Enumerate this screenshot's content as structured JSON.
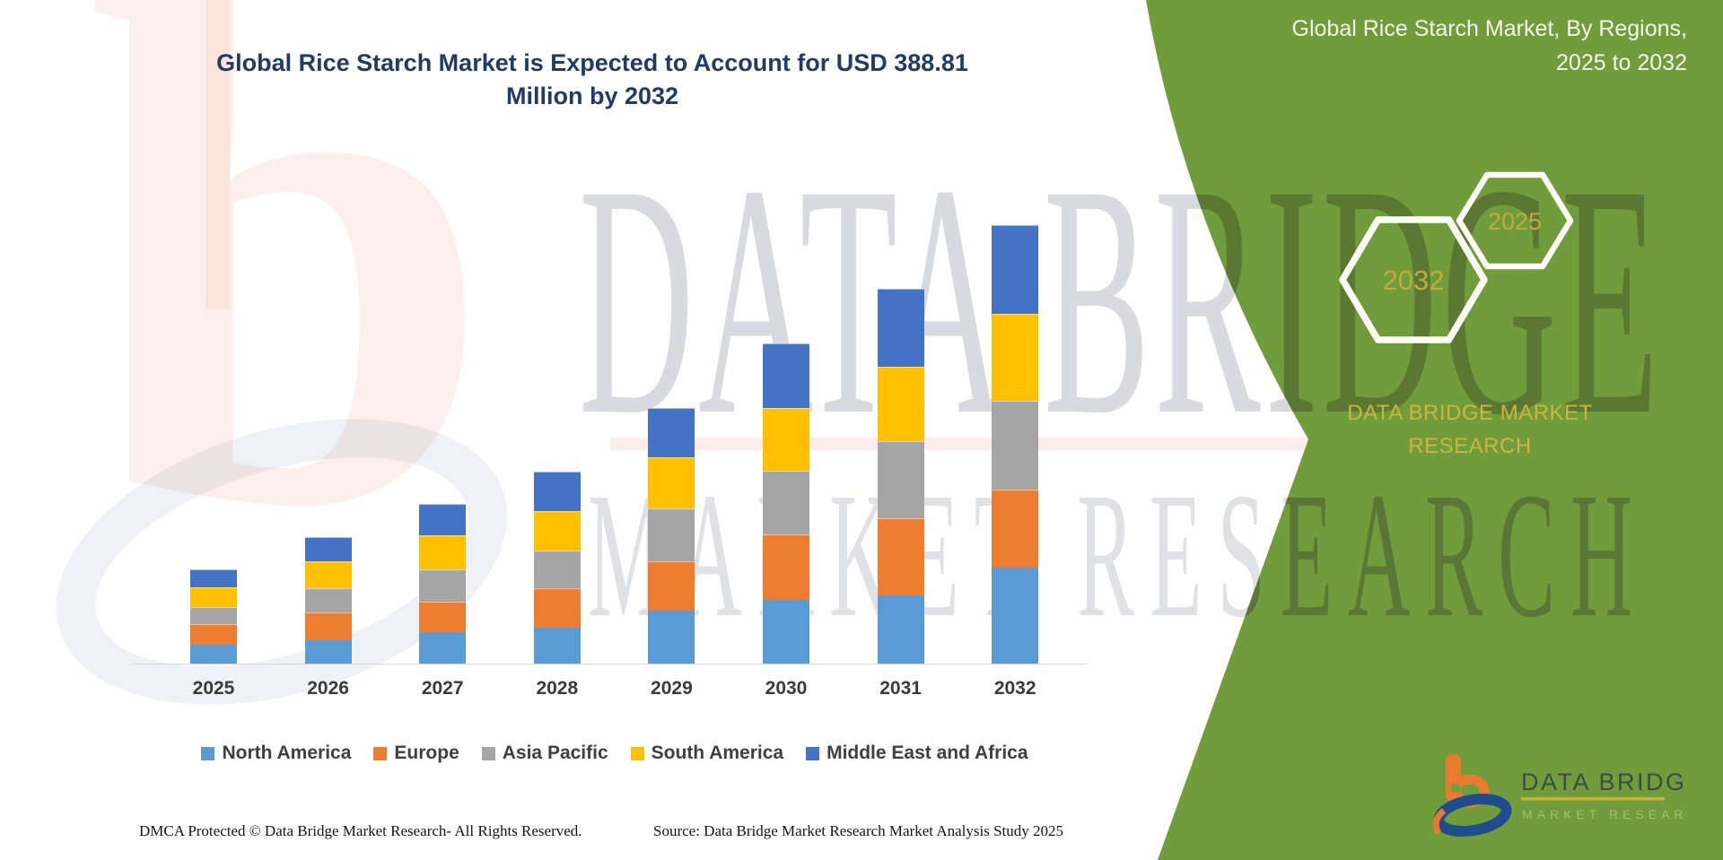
{
  "title": "Global Rice Starch Market is Expected to Account for USD 388.81 Million by 2032",
  "watermark": {
    "line1": "DATA BRIDGE",
    "line2": "MARKET RESEARCH",
    "logo_glyph": "b"
  },
  "panel": {
    "title": "Global Rice Starch Market, By Regions, 2025 to 2032",
    "hexagon_large": "2032",
    "hexagon_small": "2025",
    "brand": "DATA BRIDGE MARKET RESEARCH",
    "logo_title": "DATA BRIDGE",
    "logo_subtitle": "MARKET RESEARCH",
    "colors": {
      "panel_green": "#719C3C",
      "gold_text": "#CDB53E",
      "hexagon_stroke": "#FCFCF7"
    }
  },
  "footer": {
    "left": "DMCA Protected © Data Bridge Market Research-  All Rights Reserved.",
    "right": "Source: Data Bridge Market Research  Market Analysis Study 2025"
  },
  "chart_data": {
    "type": "bar",
    "stacked": true,
    "title": "Global Rice Starch Market is Expected to Account for USD 388.81 Million by 2032",
    "unit": "USD Million",
    "categories": [
      "2025",
      "2026",
      "2027",
      "2028",
      "2029",
      "2030",
      "2031",
      "2032"
    ],
    "series": [
      {
        "name": "North America",
        "color": "#5B9BD5",
        "values": [
          17.2,
          21.2,
          28.3,
          32.3,
          47.7,
          57.0,
          61.0,
          86.1
        ]
      },
      {
        "name": "Europe",
        "color": "#ED7D31",
        "values": [
          18.6,
          24.6,
          27.3,
          35.3,
          43.7,
          58.3,
          68.0,
          68.9
        ]
      },
      {
        "name": "Asia Pacific",
        "color": "#A5A5A5",
        "values": [
          14.3,
          21.7,
          27.8,
          33.1,
          46.3,
          55.6,
          68.3,
          78.1
        ]
      },
      {
        "name": "South America",
        "color": "#FFC000",
        "values": [
          17.5,
          23.3,
          30.4,
          35.0,
          45.0,
          55.6,
          66.2,
          76.8
        ]
      },
      {
        "name": "Middle East and Africa",
        "color": "#4472C4",
        "values": [
          16.1,
          21.7,
          27.8,
          34.5,
          43.7,
          57.0,
          68.9,
          78.9
        ]
      }
    ],
    "totals": [
      83.7,
      112.5,
      141.6,
      170.2,
      226.4,
      283.5,
      332.4,
      388.8
    ],
    "highlight_total": {
      "category": "2032",
      "value": 388.81
    },
    "ylim": [
      0,
      400
    ],
    "grid": false,
    "y_axis_visible": false,
    "legend_position": "bottom"
  }
}
